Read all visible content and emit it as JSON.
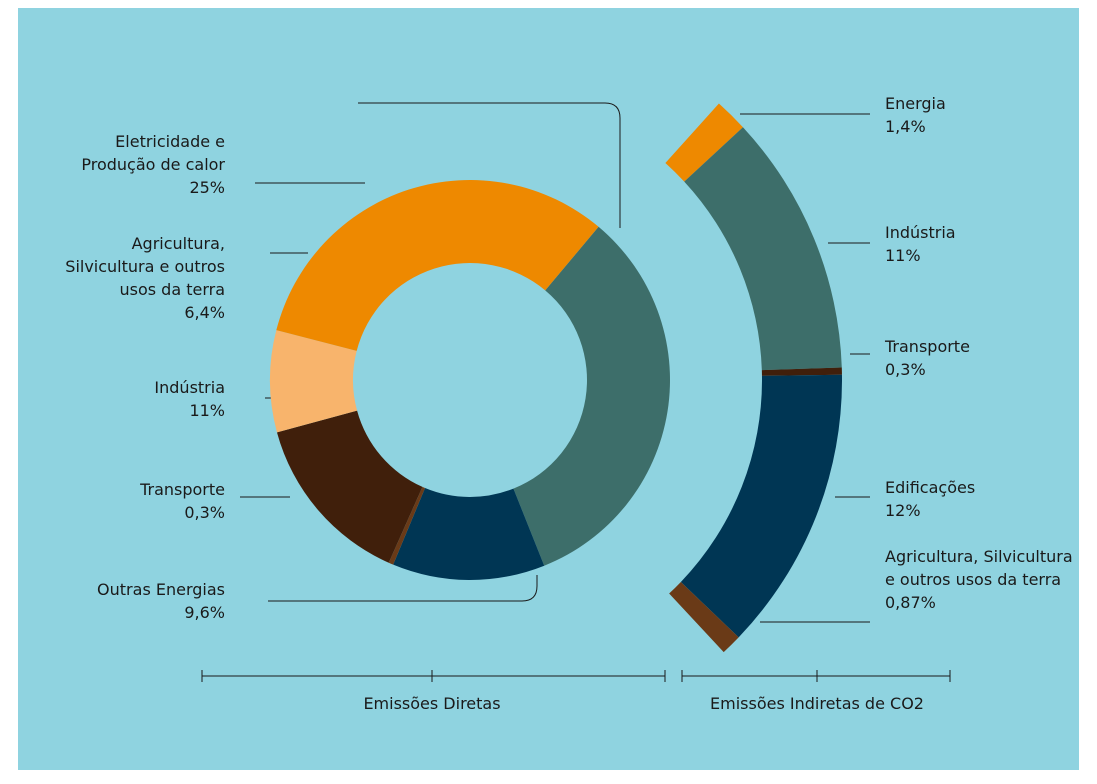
{
  "chart_data": {
    "type": "donut",
    "direct": {
      "name": "Emissões Diretas",
      "categories": [
        "Eletricidade e Produção de calor",
        "Agricultura, Silvicultura e outros usos da terra",
        "Indústria",
        "Transporte",
        "Outras Energias"
      ],
      "values": [
        25,
        6.4,
        11,
        0.3,
        9.6
      ],
      "value_labels": [
        "25%",
        "6,4%",
        "11%",
        "0,3%",
        "9,6%"
      ],
      "colors": [
        "#ee8900",
        "#f8b46c",
        "#401f0b",
        "#6a3a17",
        "#003654"
      ]
    },
    "indirect": {
      "name": "Emissões Indiretas de CO2",
      "color": "#3d6e6a",
      "categories": [
        "Energia",
        "Indústria",
        "Transporte",
        "Edificações",
        "Agricultura, Silvicultura e outros usos da terra"
      ],
      "values": [
        1.4,
        11,
        0.3,
        12,
        0.87
      ],
      "value_labels": [
        "1,4%",
        "11%",
        "0,3%",
        "12%",
        "0,87%"
      ],
      "colors": [
        "#ee8900",
        "#3d6e6a",
        "#401f0b",
        "#003654",
        "#6a3a17"
      ]
    }
  }
}
